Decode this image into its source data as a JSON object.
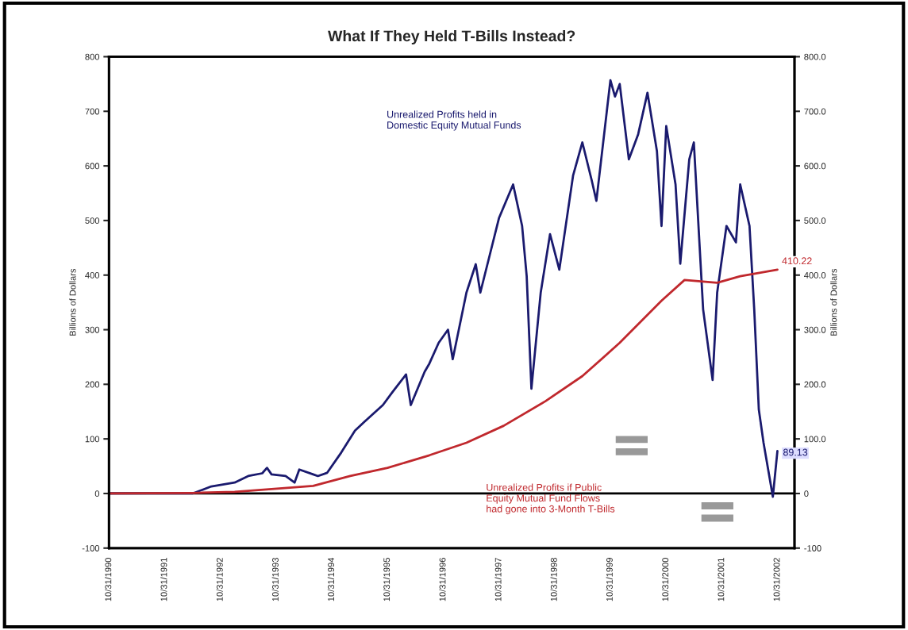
{
  "chart_data": {
    "type": "line",
    "title": "What If They Held T-Bills Instead?",
    "ylabel": "Billions of Dollars",
    "y2label": "Billions of Dollars",
    "series": [
      {
        "color": "#1a1a6e",
        "x": [
          "1990-10-31",
          "1992-05",
          "1992-09",
          "1993-02",
          "1993-05",
          "1993-08",
          "1993-09",
          "1993-10",
          "1994-01",
          "1994-03",
          "1994-04",
          "1994-07",
          "1994-08",
          "1994-10",
          "1995-01",
          "1995-04",
          "1995-06",
          "1995-10",
          "1995-12",
          "1996-03",
          "1996-04",
          "1996-07",
          "1996-08",
          "1996-10",
          "1996-12",
          "1997-01",
          "1997-04",
          "1997-06",
          "1997-07",
          "1997-09",
          "1997-11",
          "1998-02",
          "1998-04",
          "1998-05",
          "1998-06",
          "1998-08",
          "1998-10",
          "1998-12",
          "1999-03",
          "1999-05",
          "1999-07",
          "1999-08",
          "1999-11",
          "1999-12",
          "2000-01",
          "2000-03",
          "2000-05",
          "2000-07",
          "2000-09",
          "2000-10",
          "2000-11",
          "2001-01",
          "2001-02",
          "2001-04",
          "2001-05",
          "2001-07",
          "2001-09",
          "2001-10",
          "2001-12",
          "2002-02",
          "2002-03",
          "2002-05",
          "2002-06",
          "2002-07",
          "2002-08",
          "2002-10-01",
          "2002-10-31"
        ],
        "values": [
          0,
          0,
          13,
          20,
          32,
          37,
          47,
          35,
          32,
          20,
          44,
          35,
          32,
          38,
          75,
          115,
          131,
          162,
          185,
          218,
          162,
          223,
          238,
          276,
          300,
          246,
          368,
          420,
          368,
          437,
          505,
          566,
          490,
          398,
          192,
          368,
          475,
          410,
          582,
          643,
          574,
          536,
          757,
          727,
          750,
          612,
          658,
          734,
          627,
          490,
          673,
          566,
          421,
          612,
          643,
          337,
          208,
          368,
          490,
          460,
          566,
          490,
          337,
          154,
          93,
          -6,
          78
        ]
      },
      {
        "color": "#c0282d",
        "x": [
          "1990-10-31",
          "1992-05",
          "1993-02",
          "1993-10",
          "1994-07",
          "1995-03",
          "1995-11",
          "1996-08",
          "1997-04",
          "1997-12",
          "1998-09",
          "1999-05",
          "2000-01",
          "2000-10",
          "2001-03",
          "2001-10",
          "2002-03",
          "2002-10-31"
        ],
        "values": [
          0,
          1,
          3,
          8,
          14,
          32,
          47,
          70,
          93,
          124,
          169,
          215,
          276,
          353,
          391,
          386,
          398,
          410
        ]
      }
    ],
    "annotations": [
      "Unrealized Profits held in\nDomestic Equity Mutual Funds",
      "Unrealized Profits if Public\nEquity Mutual Fund Flows\nhad gone into 3-Month T-Bills",
      {
        "text": "410.22",
        "x": "2002-10-31",
        "y": 410
      },
      {
        "text": "89.13",
        "x": "2002-10-31",
        "y": 78
      }
    ],
    "ref_lines": [
      {
        "axis": "y",
        "value": 0,
        "color": "#000000"
      }
    ],
    "xlim": [
      "1990-10-31",
      "2003-02-20"
    ],
    "xticks": [
      {
        "value": "1990-10-31",
        "label": "10/31/1990"
      },
      {
        "value": "1991-10-31",
        "label": "10/31/1991"
      },
      {
        "value": "1992-10-31",
        "label": "10/31/1992"
      },
      {
        "value": "1993-10-31",
        "label": "10/31/1993"
      },
      {
        "value": "1994-10-31",
        "label": "10/31/1994"
      },
      {
        "value": "1995-10-31",
        "label": "10/31/1995"
      },
      {
        "value": "1996-10-31",
        "label": "10/31/1996"
      },
      {
        "value": "1997-10-31",
        "label": "10/31/1997"
      },
      {
        "value": "1998-10-31",
        "label": "10/31/1998"
      },
      {
        "value": "1999-10-31",
        "label": "10/31/1999"
      },
      {
        "value": "2000-10-31",
        "label": "10/31/2000"
      },
      {
        "value": "2001-10-31",
        "label": "10/31/2001"
      },
      {
        "value": "2002-10-31",
        "label": "10/31/2002"
      }
    ],
    "ylim": [
      -100,
      800
    ],
    "yticks": [
      -100,
      0,
      100,
      200,
      300,
      400,
      500,
      600,
      700,
      800
    ],
    "y2lim": [
      -100,
      800
    ],
    "y2ticks": [
      -100,
      0,
      {
        "value": 100,
        "label": "100.0"
      },
      {
        "value": 200,
        "label": "200.0"
      },
      {
        "value": 300,
        "label": "300.0"
      },
      {
        "value": 400,
        "label": "400.0"
      },
      {
        "value": 500,
        "label": "500.0"
      },
      {
        "value": 600,
        "label": "600.0"
      },
      {
        "value": 700,
        "label": "700.0"
      },
      {
        "value": 800,
        "label": "800.0"
      }
    ],
    "grid": false,
    "legend": false,
    "marker": "none",
    "line_style": "solid"
  }
}
